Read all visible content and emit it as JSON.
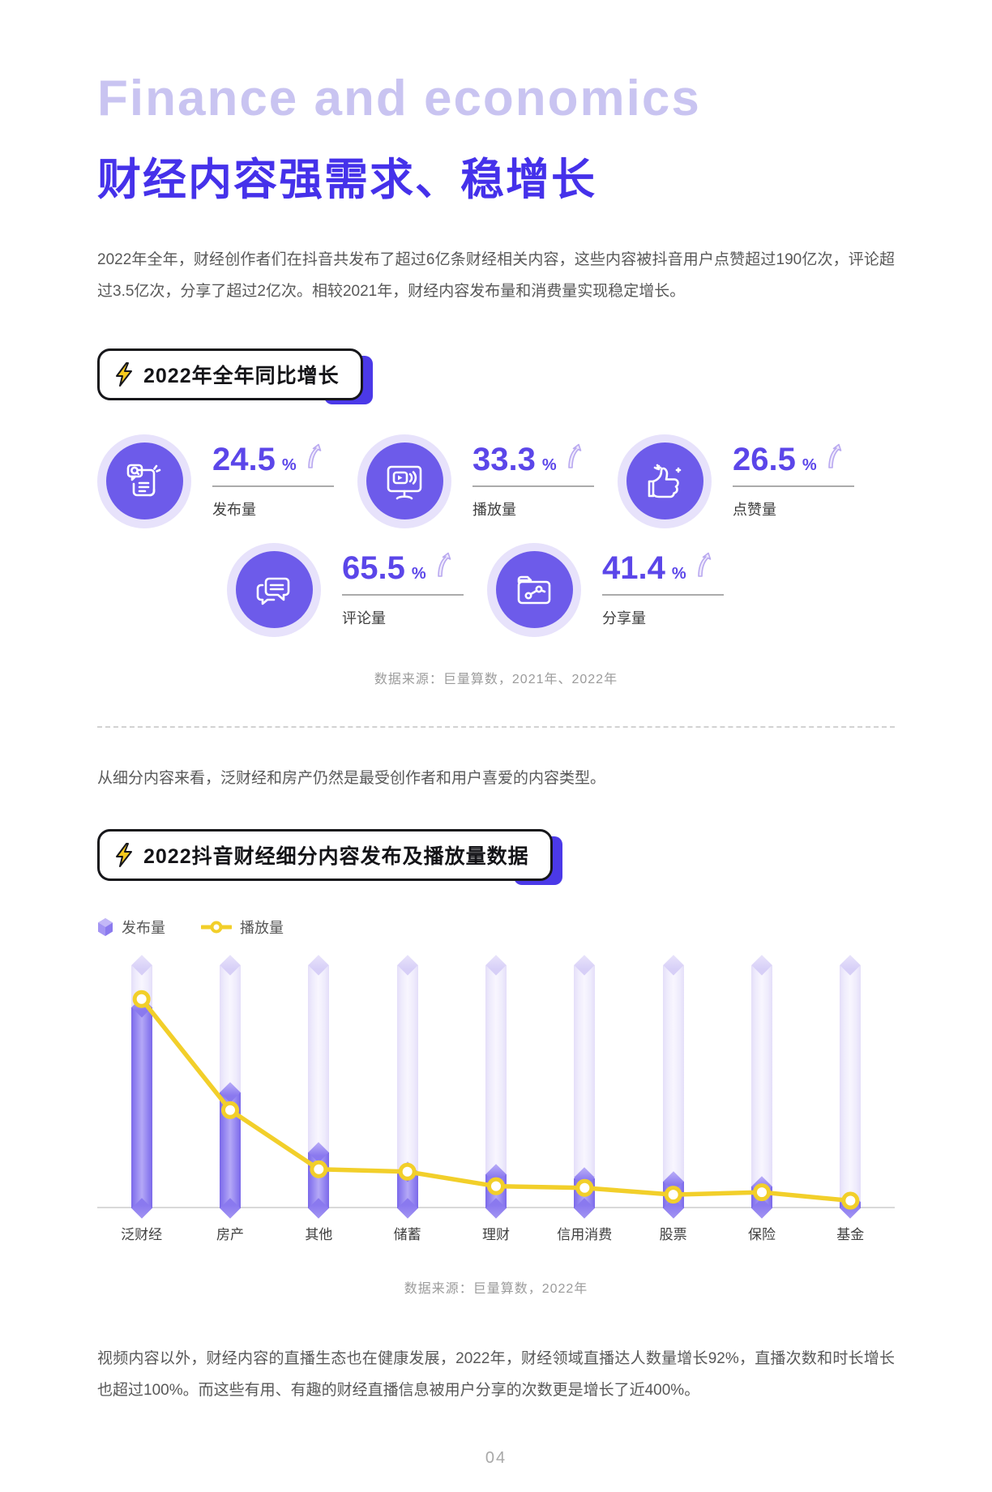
{
  "page": {
    "eyebrow_title": "Finance and economics",
    "title": "财经内容强需求、稳增长",
    "intro": "2022年全年，财经创作者们在抖音共发布了超过6亿条财经相关内容，这些内容被抖音用户点赞超过190亿次，评论超过3.5亿次，分享了超过2亿次。相较2021年，财经内容发布量和消费量实现稳定增长。",
    "page_number": "04"
  },
  "growth_section": {
    "badge_label": "2022年全年同比增长",
    "stats": [
      {
        "value": "24.5",
        "unit": "%",
        "label": "发布量",
        "icon": "publish-icon"
      },
      {
        "value": "33.3",
        "unit": "%",
        "label": "播放量",
        "icon": "play-volume-icon"
      },
      {
        "value": "26.5",
        "unit": "%",
        "label": "点赞量",
        "icon": "thumbs-up-icon"
      },
      {
        "value": "65.5",
        "unit": "%",
        "label": "评论量",
        "icon": "comments-icon"
      },
      {
        "value": "41.4",
        "unit": "%",
        "label": "分享量",
        "icon": "share-folder-icon"
      }
    ],
    "source": "数据来源：巨量算数，2021年、2022年"
  },
  "detail_section": {
    "intro": "从细分内容来看，泛财经和房产仍然是最受创作者和用户喜爱的内容类型。",
    "badge_label": "2022抖音财经细分内容发布及播放量数据",
    "legend": [
      {
        "label": "发布量",
        "marker": "purple-cube"
      },
      {
        "label": "播放量",
        "marker": "yellow-line-dot"
      }
    ],
    "source": "数据来源：巨量算数，2022年"
  },
  "chart_data": {
    "type": "bar+line",
    "title": "2022抖音财经细分内容发布及播放量数据",
    "categories": [
      "泛财经",
      "房产",
      "其他",
      "储蓄",
      "理财",
      "信用消费",
      "股票",
      "保险",
      "基金"
    ],
    "series": [
      {
        "name": "发布量",
        "type": "bar",
        "values": [
          83,
          48,
          23,
          15,
          14,
          12.5,
          11,
          9,
          2.5
        ]
      },
      {
        "name": "播放量",
        "type": "line",
        "values": [
          86,
          40,
          15.5,
          14.5,
          8.5,
          7.8,
          5,
          6,
          2.5
        ]
      }
    ],
    "value_axis_note": "no numeric axis shown; values are relative index 0-100",
    "ylim": [
      0,
      100
    ],
    "grid": false,
    "legend_position": "top-left"
  },
  "outro": "视频内容以外，财经内容的直播生态也在健康发展，2022年，财经领域直播达人数量增长92%，直播次数和时长增长也超过100%。而这些有用、有趣的财经直播信息被用户分享的次数更是增长了近400%。",
  "colors": {
    "accent_purple": "#4531ea",
    "light_purple_title": "#c9c4f1",
    "stat_value_purple": "#5b46e9",
    "disc_purple": "#6d5bea",
    "ring_lavender": "#e7e2fb",
    "bar_purple": "#9182f0",
    "track_lavender": "#efecfc",
    "line_yellow": "#f2cf2a",
    "badge_blue": "#4b39e8",
    "bolt_yellow": "#f6c91e"
  }
}
